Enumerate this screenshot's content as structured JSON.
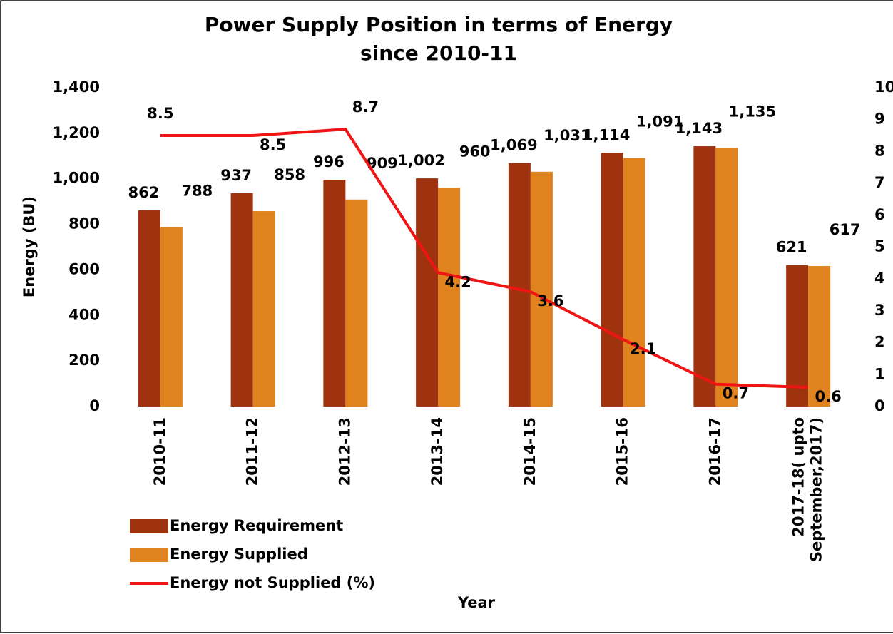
{
  "chart_data": {
    "type": "bar",
    "title": [
      "Power Supply Position in terms of Energy",
      "since 2010-11"
    ],
    "xlabel": "Year",
    "ylabel": "Energy (BU)",
    "categories": [
      "2010-11",
      "2011-12",
      "2012-13",
      "2013-14",
      "2014-15",
      "2015-16",
      "2016-17",
      "2017-18( upto\nSeptember,2017)"
    ],
    "series": [
      {
        "name": "Energy Requirement",
        "type": "bar",
        "color": "#a0330f",
        "values": [
          862,
          937,
          996,
          1002,
          1069,
          1114,
          1143,
          621
        ],
        "value_labels": [
          "862",
          "937",
          "996",
          "1,002",
          "1,069",
          "1,114",
          "1,143",
          "621"
        ]
      },
      {
        "name": "Energy Supplied",
        "type": "bar",
        "color": "#e0821e",
        "values": [
          788,
          858,
          909,
          960,
          1031,
          1091,
          1135,
          617
        ],
        "value_labels": [
          "788",
          "858",
          "909",
          "960",
          "1,031",
          "1,091",
          "1,135",
          "617"
        ]
      },
      {
        "name": "Energy not Supplied (%)",
        "type": "line",
        "axis": "y2",
        "color": "#f01414",
        "values": [
          8.5,
          8.5,
          8.7,
          4.2,
          3.6,
          2.1,
          0.7,
          0.6
        ]
      }
    ],
    "ylim": [
      0,
      1400
    ],
    "yticks": [
      0,
      200,
      400,
      600,
      800,
      {
        "value": 1000,
        "label": "1,000"
      },
      {
        "value": 1200,
        "label": "1,200"
      },
      {
        "value": 1400,
        "label": "1,400"
      }
    ],
    "y2lim": [
      0,
      10
    ],
    "y2ticks": [
      0,
      1,
      2,
      3,
      4,
      5,
      6,
      7,
      8,
      9,
      10
    ],
    "grid": false,
    "legend": "bottom-left"
  }
}
